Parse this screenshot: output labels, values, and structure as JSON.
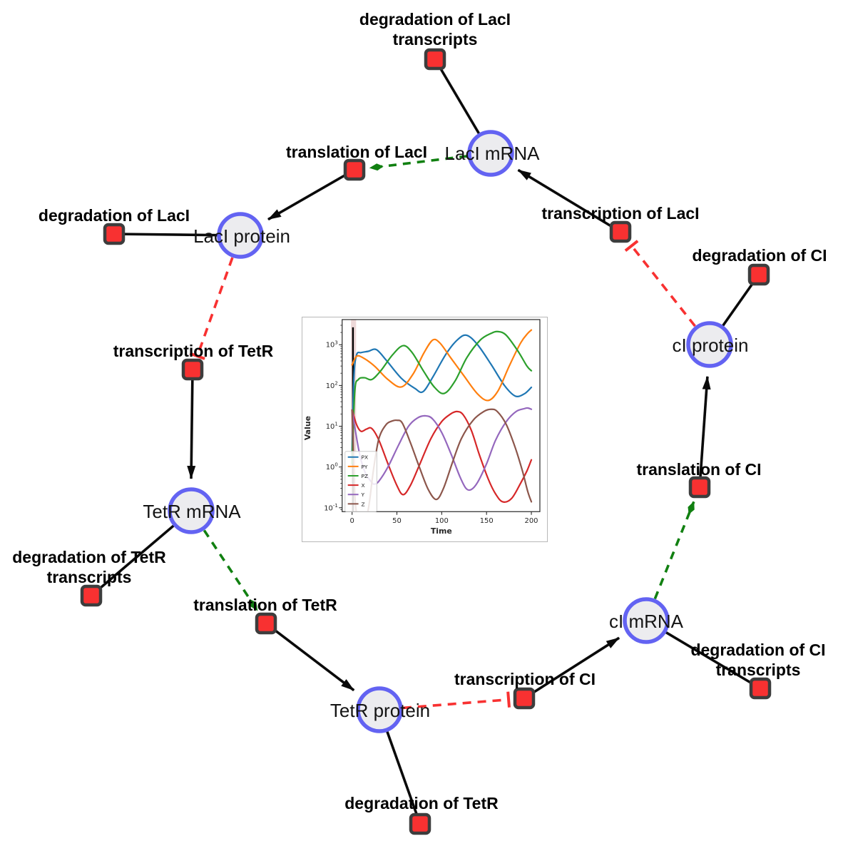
{
  "diagram": {
    "title": "repressilator reaction network",
    "colors": {
      "species_fill": "#ececef",
      "species_stroke": "#6363f2",
      "reaction_fill": "#f83131",
      "reaction_stroke": "#3d3d3d",
      "edge_black": "#0a0a0a",
      "modifier_green": "#118011",
      "inhibition_red": "#f83131"
    },
    "species": [
      {
        "id": "laci-mrna",
        "label": "LacI mRNA"
      },
      {
        "id": "laci-protein",
        "label": "LacI protein"
      },
      {
        "id": "tetr-mrna",
        "label": "TetR mRNA"
      },
      {
        "id": "tetr-protein",
        "label": "TetR protein"
      },
      {
        "id": "ci-mrna",
        "label": "cI mRNA"
      },
      {
        "id": "ci-protein",
        "label": "cI protein"
      }
    ],
    "reactions": [
      {
        "id": "degradation-laci-transcripts",
        "lines": [
          "degradation of LacI",
          "transcripts"
        ]
      },
      {
        "id": "translation-laci",
        "lines": [
          "translation of LacI"
        ]
      },
      {
        "id": "degradation-laci",
        "lines": [
          "degradation of LacI"
        ]
      },
      {
        "id": "transcription-laci",
        "lines": [
          "transcription of LacI"
        ]
      },
      {
        "id": "degradation-ci",
        "lines": [
          "degradation of CI"
        ]
      },
      {
        "id": "transcription-tetr",
        "lines": [
          "transcription of TetR"
        ]
      },
      {
        "id": "translation-ci",
        "lines": [
          "translation of CI"
        ]
      },
      {
        "id": "degradation-tetr-transcripts",
        "lines": [
          "degradation of TetR",
          "transcripts"
        ]
      },
      {
        "id": "translation-tetr",
        "lines": [
          "translation of TetR"
        ]
      },
      {
        "id": "transcription-ci",
        "lines": [
          "transcription of CI"
        ]
      },
      {
        "id": "degradation-ci-transcripts",
        "lines": [
          "degradation of CI",
          "transcripts"
        ]
      },
      {
        "id": "degradation-tetr",
        "lines": [
          "degradation of TetR"
        ]
      }
    ],
    "edges": [
      {
        "from": "laci-mrna",
        "to": "degradation-laci-transcripts",
        "type": "plain"
      },
      {
        "from": "laci-protein",
        "to": "degradation-laci",
        "type": "plain"
      },
      {
        "from": "tetr-mrna",
        "to": "degradation-tetr-transcripts",
        "type": "plain"
      },
      {
        "from": "tetr-protein",
        "to": "degradation-tetr",
        "type": "plain"
      },
      {
        "from": "ci-protein",
        "to": "degradation-ci",
        "type": "plain"
      },
      {
        "from": "ci-mrna",
        "to": "degradation-ci-transcripts",
        "type": "plain"
      },
      {
        "from": "transcription-laci",
        "to": "laci-mrna",
        "type": "arrow"
      },
      {
        "from": "transcription-tetr",
        "to": "tetr-mrna",
        "type": "arrow"
      },
      {
        "from": "transcription-ci",
        "to": "ci-mrna",
        "type": "arrow"
      },
      {
        "from": "translation-laci",
        "to": "laci-protein",
        "type": "arrow"
      },
      {
        "from": "translation-tetr",
        "to": "tetr-protein",
        "type": "arrow"
      },
      {
        "from": "translation-ci",
        "to": "ci-protein",
        "type": "arrow"
      },
      {
        "from": "laci-mrna",
        "to": "translation-laci",
        "type": "modifier-green-dashed"
      },
      {
        "from": "tetr-mrna",
        "to": "translation-tetr",
        "type": "modifier-green-dashed"
      },
      {
        "from": "ci-mrna",
        "to": "translation-ci",
        "type": "modifier-green-dashed"
      },
      {
        "from": "laci-protein",
        "to": "transcription-tetr",
        "type": "inhibition-red-dashed"
      },
      {
        "from": "tetr-protein",
        "to": "transcription-ci",
        "type": "inhibition-red-dashed"
      },
      {
        "from": "ci-protein",
        "to": "transcription-laci",
        "type": "inhibition-red-dashed"
      }
    ]
  },
  "chart_data": {
    "type": "line",
    "xlabel": "Time",
    "ylabel": "Value",
    "x_ticks": [
      0,
      50,
      100,
      150,
      200
    ],
    "xlim": [
      -11,
      209
    ],
    "y_scale": "log",
    "y_tick_exponents": [
      -1,
      0,
      1,
      2,
      3
    ],
    "ylim": [
      0.078,
      3980
    ],
    "legend_position": "lower left",
    "legend": [
      "PX",
      "PY",
      "PZ",
      "X",
      "Y",
      "Z"
    ],
    "annotations": {
      "vline_x": 1,
      "vspan": [
        0,
        4.5
      ]
    },
    "series": [
      {
        "name": "PX",
        "color": "#1f77b4",
        "points": [
          [
            0,
            2
          ],
          [
            2,
            150
          ],
          [
            5,
            560
          ],
          [
            10,
            640
          ],
          [
            18,
            690
          ],
          [
            27,
            760
          ],
          [
            38,
            420
          ],
          [
            55,
            150
          ],
          [
            70,
            85
          ],
          [
            79,
            70
          ],
          [
            90,
            160
          ],
          [
            105,
            600
          ],
          [
            118,
            1350
          ],
          [
            128,
            1700
          ],
          [
            140,
            1000
          ],
          [
            155,
            330
          ],
          [
            170,
            100
          ],
          [
            182,
            55
          ],
          [
            192,
            62
          ],
          [
            200,
            90
          ]
        ]
      },
      {
        "name": "PY",
        "color": "#ff7f0e",
        "points": [
          [
            0,
            320
          ],
          [
            5,
            520
          ],
          [
            12,
            480
          ],
          [
            25,
            300
          ],
          [
            40,
            140
          ],
          [
            55,
            92
          ],
          [
            68,
            190
          ],
          [
            80,
            620
          ],
          [
            90,
            1300
          ],
          [
            98,
            1100
          ],
          [
            110,
            480
          ],
          [
            125,
            170
          ],
          [
            140,
            62
          ],
          [
            152,
            43
          ],
          [
            163,
            75
          ],
          [
            175,
            290
          ],
          [
            188,
            1100
          ],
          [
            196,
            1900
          ],
          [
            200,
            2300
          ]
        ]
      },
      {
        "name": "PZ",
        "color": "#2ca02c",
        "points": [
          [
            0,
            1.2
          ],
          [
            3,
            70
          ],
          [
            7,
            140
          ],
          [
            14,
            155
          ],
          [
            22,
            140
          ],
          [
            32,
            230
          ],
          [
            45,
            560
          ],
          [
            57,
            950
          ],
          [
            67,
            640
          ],
          [
            80,
            220
          ],
          [
            92,
            90
          ],
          [
            103,
            64
          ],
          [
            115,
            130
          ],
          [
            128,
            480
          ],
          [
            143,
            1300
          ],
          [
            155,
            1900
          ],
          [
            163,
            2100
          ],
          [
            172,
            1700
          ],
          [
            185,
            700
          ],
          [
            195,
            300
          ],
          [
            200,
            230
          ]
        ]
      },
      {
        "name": "X",
        "color": "#d62728",
        "points": [
          [
            0,
            25
          ],
          [
            5,
            11
          ],
          [
            10,
            7.5
          ],
          [
            16,
            8.5
          ],
          [
            22,
            8.8
          ],
          [
            30,
            4.5
          ],
          [
            40,
            1.2
          ],
          [
            50,
            0.35
          ],
          [
            57,
            0.21
          ],
          [
            65,
            0.35
          ],
          [
            75,
            1.1
          ],
          [
            88,
            5
          ],
          [
            100,
            13
          ],
          [
            110,
            20
          ],
          [
            117,
            23
          ],
          [
            124,
            19
          ],
          [
            133,
            8
          ],
          [
            142,
            2
          ],
          [
            152,
            0.5
          ],
          [
            160,
            0.22
          ],
          [
            168,
            0.14
          ],
          [
            178,
            0.17
          ],
          [
            188,
            0.4
          ],
          [
            195,
            0.8
          ],
          [
            200,
            1.5
          ]
        ]
      },
      {
        "name": "Y",
        "color": "#9467bd",
        "points": [
          [
            0,
            25
          ],
          [
            4,
            7
          ],
          [
            9,
            1.8
          ],
          [
            15,
            0.7
          ],
          [
            22,
            0.42
          ],
          [
            25,
            0.38
          ],
          [
            30,
            0.45
          ],
          [
            40,
            1
          ],
          [
            52,
            3.5
          ],
          [
            63,
            10
          ],
          [
            73,
            16
          ],
          [
            82,
            18
          ],
          [
            90,
            15
          ],
          [
            100,
            7
          ],
          [
            110,
            2.2
          ],
          [
            120,
            0.6
          ],
          [
            127,
            0.3
          ],
          [
            133,
            0.28
          ],
          [
            140,
            0.42
          ],
          [
            150,
            1.2
          ],
          [
            160,
            4.5
          ],
          [
            172,
            13
          ],
          [
            183,
            23
          ],
          [
            192,
            27
          ],
          [
            196,
            28
          ],
          [
            200,
            26
          ]
        ]
      },
      {
        "name": "Z",
        "color": "#8c564b",
        "points": [
          [
            0,
            25
          ],
          [
            1.5,
            2
          ],
          [
            3,
            0.2
          ],
          [
            6,
            0.06
          ],
          [
            12,
            0.05
          ],
          [
            18,
            0.09
          ],
          [
            24,
            0.9
          ],
          [
            30,
            5
          ],
          [
            38,
            11
          ],
          [
            45,
            13.5
          ],
          [
            50,
            14
          ],
          [
            56,
            12
          ],
          [
            65,
            4
          ],
          [
            75,
            1
          ],
          [
            85,
            0.28
          ],
          [
            94,
            0.16
          ],
          [
            102,
            0.3
          ],
          [
            112,
            1.3
          ],
          [
            122,
            5
          ],
          [
            135,
            14
          ],
          [
            147,
            23
          ],
          [
            155,
            26
          ],
          [
            162,
            23
          ],
          [
            172,
            11
          ],
          [
            182,
            3
          ],
          [
            190,
            0.8
          ],
          [
            196,
            0.25
          ],
          [
            200,
            0.14
          ]
        ]
      }
    ]
  }
}
